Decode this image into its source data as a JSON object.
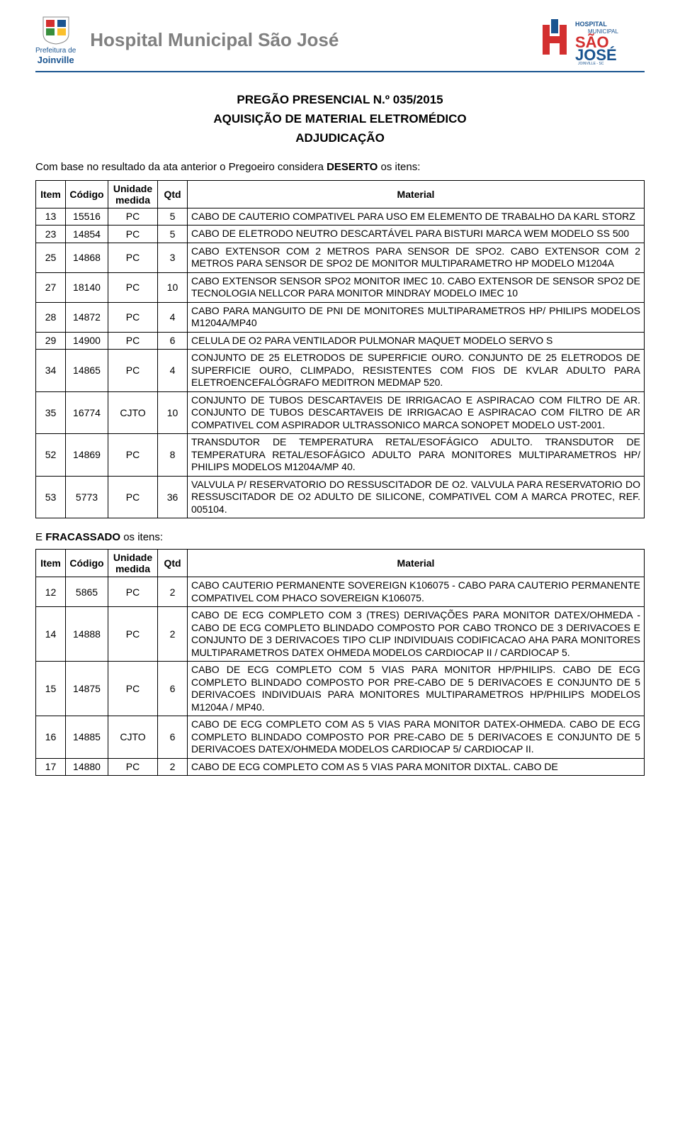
{
  "header": {
    "left_logo_line1": "Prefeitura de",
    "left_logo_line2": "Joinville",
    "center_title": "Hospital Municipal São José",
    "right_logo_top": "HOSPITAL",
    "right_logo_mid": "MUNICIPAL",
    "right_logo_brand1": "SÃO",
    "right_logo_brand2": "JOSÉ",
    "right_logo_city": "JOINVILLE - SC"
  },
  "colors": {
    "divider": "#1a5490",
    "title_gray": "#808080",
    "logo_red": "#d32f2f",
    "logo_blue": "#1a5490",
    "logo_green": "#388e3c",
    "logo_yellow": "#fbc02d"
  },
  "title": {
    "line1": "PREGÃO PRESENCIAL N.º 035/2015",
    "line2": "AQUISIÇÃO DE MATERIAL ELETROMÉDICO",
    "line3": "ADJUDICAÇÃO"
  },
  "intro_prefix": "Com base no resultado da ata anterior o Pregoeiro considera ",
  "intro_bold": "DESERTO",
  "intro_suffix": " os itens:",
  "columns": {
    "item": "Item",
    "codigo": "Código",
    "unidade": "Unidade medida",
    "qtd": "Qtd",
    "material": "Material"
  },
  "table1": [
    {
      "item": "13",
      "codigo": "15516",
      "un": "PC",
      "qtd": "5",
      "mat": "CABO DE CAUTERIO COMPATIVEL PARA USO EM ELEMENTO DE TRABALHO DA KARL STORZ"
    },
    {
      "item": "23",
      "codigo": "14854",
      "un": "PC",
      "qtd": "5",
      "mat": "CABO DE ELETRODO NEUTRO DESCARTÁVEL PARA BISTURI MARCA WEM MODELO SS 500"
    },
    {
      "item": "25",
      "codigo": "14868",
      "un": "PC",
      "qtd": "3",
      "mat": "CABO EXTENSOR COM 2 METROS PARA SENSOR DE SPO2. CABO EXTENSOR COM 2 METROS PARA SENSOR DE SPO2 DE MONITOR MULTIPARAMETRO HP MODELO M1204A"
    },
    {
      "item": "27",
      "codigo": "18140",
      "un": "PC",
      "qtd": "10",
      "mat": "CABO EXTENSOR SENSOR SPO2 MONITOR IMEC 10. CABO EXTENSOR DE SENSOR SPO2 DE TECNOLOGIA NELLCOR PARA MONITOR MINDRAY MODELO IMEC 10"
    },
    {
      "item": "28",
      "codigo": "14872",
      "un": "PC",
      "qtd": "4",
      "mat": "CABO PARA MANGUITO DE PNI DE MONITORES MULTIPARAMETROS HP/ PHILIPS MODELOS M1204A/MP40"
    },
    {
      "item": "29",
      "codigo": "14900",
      "un": "PC",
      "qtd": "6",
      "mat": "CELULA DE O2 PARA VENTILADOR PULMONAR MAQUET MODELO SERVO S"
    },
    {
      "item": "34",
      "codigo": "14865",
      "un": "PC",
      "qtd": "4",
      "mat": "CONJUNTO DE 25 ELETRODOS DE SUPERFICIE OURO. CONJUNTO DE 25 ELETRODOS DE SUPERFICIE OURO, CLIMPADO, RESISTENTES COM FIOS DE KVLAR ADULTO PARA ELETROENCEFALÓGRAFO MEDITRON MEDMAP 520."
    },
    {
      "item": "35",
      "codigo": "16774",
      "un": "CJTO",
      "qtd": "10",
      "mat": "CONJUNTO DE TUBOS DESCARTAVEIS DE IRRIGACAO E ASPIRACAO COM FILTRO DE AR. CONJUNTO DE TUBOS DESCARTAVEIS DE IRRIGACAO E ASPIRACAO COM FILTRO DE AR COMPATIVEL COM ASPIRADOR ULTRASSONICO MARCA SONOPET MODELO UST-2001."
    },
    {
      "item": "52",
      "codigo": "14869",
      "un": "PC",
      "qtd": "8",
      "mat": "TRANSDUTOR DE TEMPERATURA RETAL/ESOFÁGICO ADULTO. TRANSDUTOR DE TEMPERATURA RETAL/ESOFÁGICO ADULTO PARA MONITORES MULTIPARAMETROS HP/ PHILIPS MODELOS M1204A/MP 40."
    },
    {
      "item": "53",
      "codigo": "5773",
      "un": "PC",
      "qtd": "36",
      "mat": "VALVULA P/ RESERVATORIO DO RESSUSCITADOR DE O2. VALVULA PARA RESERVATORIO DO RESSUSCITADOR DE O2 ADULTO DE SILICONE, COMPATIVEL COM A MARCA PROTEC, REF. 005104."
    }
  ],
  "section2_prefix": "E ",
  "section2_bold": "FRACASSADO",
  "section2_suffix": " os itens:",
  "table2": [
    {
      "item": "12",
      "codigo": "5865",
      "un": "PC",
      "qtd": "2",
      "mat": "CABO CAUTERIO PERMANENTE SOVEREIGN K106075 - CABO PARA CAUTERIO PERMANENTE COMPATIVEL COM PHACO SOVEREIGN K106075."
    },
    {
      "item": "14",
      "codigo": "14888",
      "un": "PC",
      "qtd": "2",
      "mat": "CABO DE ECG COMPLETO COM 3 (TRES) DERIVAÇÕES PARA MONITOR DATEX/OHMEDA - CABO DE ECG COMPLETO BLINDADO COMPOSTO POR CABO TRONCO DE 3 DERIVACOES E CONJUNTO DE 3 DERIVACOES TIPO CLIP INDIVIDUAIS CODIFICACAO AHA PARA MONITORES MULTIPARAMETROS DATEX OHMEDA MODELOS CARDIOCAP II / CARDIOCAP 5."
    },
    {
      "item": "15",
      "codigo": "14875",
      "un": "PC",
      "qtd": "6",
      "mat": "CABO DE ECG COMPLETO COM 5 VIAS PARA MONITOR HP/PHILIPS. CABO DE ECG COMPLETO BLINDADO COMPOSTO POR PRE-CABO DE 5 DERIVACOES E CONJUNTO DE 5 DERIVACOES INDIVIDUAIS PARA MONITORES MULTIPARAMETROS HP/PHILIPS MODELOS M1204A / MP40."
    },
    {
      "item": "16",
      "codigo": "14885",
      "un": "CJTO",
      "qtd": "6",
      "mat": "CABO DE ECG COMPLETO COM AS 5 VIAS PARA MONITOR DATEX-OHMEDA. CABO DE ECG COMPLETO BLINDADO COMPOSTO POR PRE-CABO DE 5 DERIVACOES E CONJUNTO DE 5 DERIVACOES DATEX/OHMEDA MODELOS CARDIOCAP 5/ CARDIOCAP II."
    },
    {
      "item": "17",
      "codigo": "14880",
      "un": "PC",
      "qtd": "2",
      "mat": "CABO DE ECG COMPLETO COM AS 5 VIAS PARA MONITOR DIXTAL.  CABO DE"
    }
  ]
}
